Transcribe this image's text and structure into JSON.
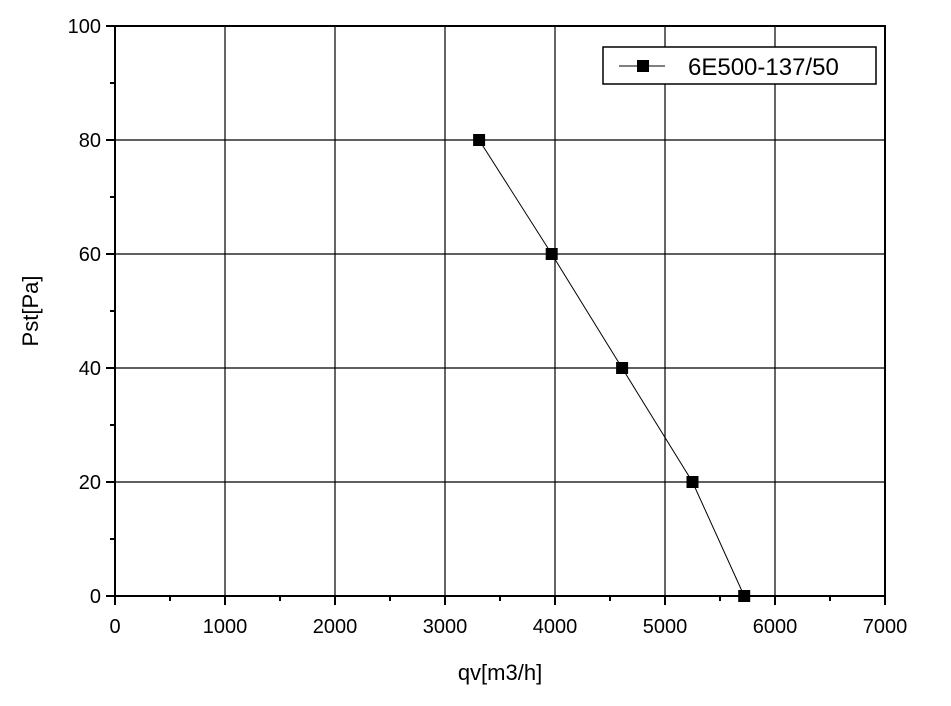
{
  "chart_data": {
    "type": "line",
    "title": "",
    "xlabel": "qv[m3/h]",
    "ylabel": "Pst[Pa]",
    "xlim": [
      0,
      7000
    ],
    "ylim": [
      0,
      100
    ],
    "xticks": [
      0,
      1000,
      2000,
      3000,
      4000,
      5000,
      6000,
      7000
    ],
    "yticks": [
      0,
      20,
      40,
      60,
      80,
      100
    ],
    "grid": true,
    "legend_position": "top-right",
    "series": [
      {
        "name": "6E500-137/50",
        "marker": "square",
        "color": "#000000",
        "x": [
          3310,
          3970,
          4610,
          5250,
          5720
        ],
        "y": [
          80,
          60,
          40,
          20,
          0
        ]
      }
    ]
  }
}
